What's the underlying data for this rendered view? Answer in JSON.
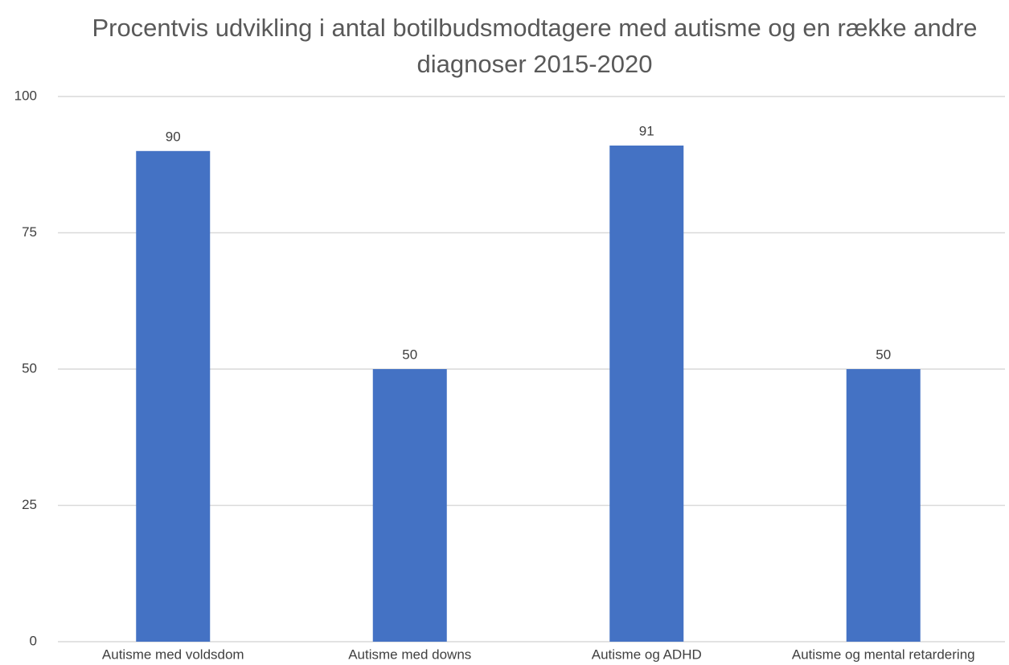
{
  "chart_data": {
    "type": "bar",
    "title": "Procentvis udvikling i antal botilbudsmodtagere med autisme og en række andre diagnoser 2015-2020",
    "categories": [
      "Autisme med voldsdom",
      "Autisme med downs",
      "Autisme og ADHD",
      "Autisme og mental retardering"
    ],
    "values": [
      90,
      50,
      91,
      50
    ],
    "color": "#4472c4",
    "ylim": [
      0,
      100
    ],
    "yticks": [
      0,
      25,
      50,
      75,
      100
    ],
    "grid": true
  }
}
